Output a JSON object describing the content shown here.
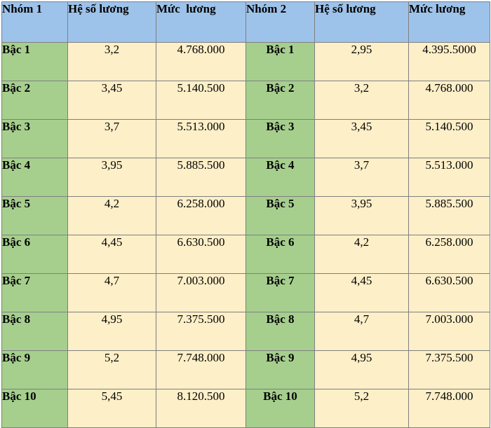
{
  "headers": [
    "Nhóm 1",
    "Hệ số lương",
    "Mức  lương",
    "Nhóm 2",
    "Hệ số lương",
    "Mức lương"
  ],
  "rows": [
    {
      "level1": "Bậc 1",
      "coef1": "3,2",
      "salary1": "4.768.000",
      "level2": "Bậc 1",
      "coef2": "2,95",
      "salary2": "4.395.5000"
    },
    {
      "level1": "Bậc 2",
      "coef1": "3,45",
      "salary1": "5.140.500",
      "level2": "Bậc 2",
      "coef2": "3,2",
      "salary2": "4.768.000"
    },
    {
      "level1": "Bậc 3",
      "coef1": "3,7",
      "salary1": "5.513.000",
      "level2": "Bậc 3",
      "coef2": "3,45",
      "salary2": "5.140.500"
    },
    {
      "level1": "Bậc 4",
      "coef1": "3,95",
      "salary1": "5.885.500",
      "level2": "Bậc 4",
      "coef2": "3,7",
      "salary2": "5.513.000"
    },
    {
      "level1": "Bậc 5",
      "coef1": "4,2",
      "salary1": "6.258.000",
      "level2": "Bậc 5",
      "coef2": "3,95",
      "salary2": "5.885.500"
    },
    {
      "level1": "Bậc 6",
      "coef1": "4,45",
      "salary1": "6.630.500",
      "level2": "Bậc 6",
      "coef2": "4,2",
      "salary2": "6.258.000"
    },
    {
      "level1": "Bậc 7",
      "coef1": "4,7",
      "salary1": "7.003.000",
      "level2": "Bậc 7",
      "coef2": "4,45",
      "salary2": "6.630.500"
    },
    {
      "level1": "Bậc 8",
      "coef1": "4,95",
      "salary1": "7.375.500",
      "level2": "Bậc 8",
      "coef2": "4,7",
      "salary2": "7.003.000"
    },
    {
      "level1": "Bậc 9",
      "coef1": "5,2",
      "salary1": "7.748.000",
      "level2": "Bậc 9",
      "coef2": "4,95",
      "salary2": "7.375.500"
    },
    {
      "level1": "Bậc 10",
      "coef1": "5,45",
      "salary1": "8.120.500",
      "level2": "Bậc 10",
      "coef2": "5,2",
      "salary2": "7.748.000"
    }
  ],
  "colors": {
    "header": "#9ec3ea",
    "level_cell": "#a6cf8e",
    "value_cell": "#fdefc8",
    "header_rule": "#3f63b0"
  }
}
